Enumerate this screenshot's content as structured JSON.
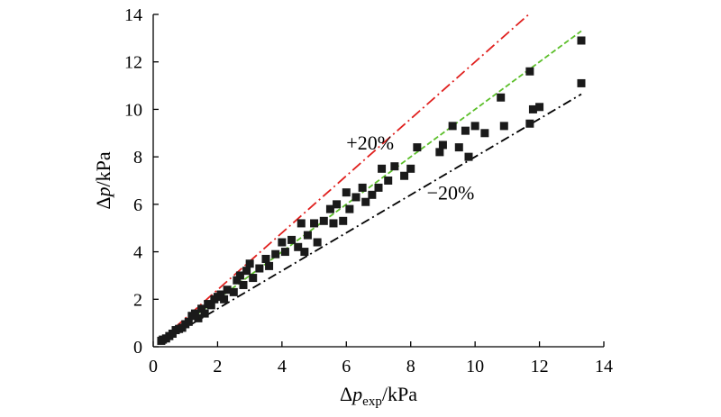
{
  "chart_data": {
    "type": "scatter",
    "title": "",
    "xlabel": {
      "prefix": "Δ",
      "var": "p",
      "sub": "exp",
      "unit": "/kPa"
    },
    "ylabel": {
      "prefix": "Δ",
      "var": "p",
      "unit": "/kPa"
    },
    "xlim": [
      0,
      14
    ],
    "ylim": [
      0,
      14
    ],
    "xticks": [
      "0",
      "2",
      "4",
      "6",
      "8",
      "10",
      "12",
      "14"
    ],
    "yticks": [
      "0",
      "2",
      "4",
      "6",
      "8",
      "10",
      "12",
      "14"
    ],
    "grid": false,
    "legend": "none",
    "lines": [
      {
        "label": "+20%",
        "slope": 1.2,
        "x_range": [
          0.2,
          11.7
        ],
        "color": "#e0201e",
        "dash": "12,4,2,4"
      },
      {
        "label": "",
        "slope": 1.0,
        "x_range": [
          0.2,
          13.3
        ],
        "color": "#5cbf2a",
        "dash": "6,3"
      },
      {
        "label": "−20%",
        "slope": 0.8,
        "x_range": [
          0.2,
          13.3
        ],
        "color": "#000000",
        "dash": "10,4,2,4"
      }
    ],
    "annotations": [
      {
        "text": "+20%",
        "x": 6.0,
        "y": 8.3
      },
      {
        "text": "−20%",
        "x": 8.5,
        "y": 6.2
      }
    ],
    "marker_color": "#1a1a1a",
    "points": [
      [
        0.25,
        0.25
      ],
      [
        0.3,
        0.3
      ],
      [
        0.4,
        0.35
      ],
      [
        0.5,
        0.45
      ],
      [
        0.6,
        0.55
      ],
      [
        0.7,
        0.7
      ],
      [
        0.8,
        0.75
      ],
      [
        0.9,
        0.8
      ],
      [
        1.0,
        0.95
      ],
      [
        1.1,
        1.05
      ],
      [
        1.2,
        1.3
      ],
      [
        1.3,
        1.4
      ],
      [
        1.4,
        1.2
      ],
      [
        1.5,
        1.6
      ],
      [
        1.6,
        1.4
      ],
      [
        1.7,
        1.8
      ],
      [
        1.8,
        1.75
      ],
      [
        1.9,
        2.0
      ],
      [
        2.0,
        2.1
      ],
      [
        2.1,
        2.2
      ],
      [
        2.2,
        2.0
      ],
      [
        2.3,
        2.4
      ],
      [
        2.5,
        2.3
      ],
      [
        2.6,
        2.8
      ],
      [
        2.7,
        3.0
      ],
      [
        2.8,
        2.6
      ],
      [
        2.9,
        3.2
      ],
      [
        3.0,
        3.5
      ],
      [
        3.1,
        2.9
      ],
      [
        3.3,
        3.3
      ],
      [
        3.5,
        3.7
      ],
      [
        3.6,
        3.4
      ],
      [
        3.8,
        3.9
      ],
      [
        4.0,
        4.4
      ],
      [
        4.1,
        4.0
      ],
      [
        4.3,
        4.5
      ],
      [
        4.5,
        4.2
      ],
      [
        4.6,
        5.2
      ],
      [
        4.7,
        4.0
      ],
      [
        4.8,
        4.7
      ],
      [
        5.0,
        5.2
      ],
      [
        5.1,
        4.4
      ],
      [
        5.3,
        5.3
      ],
      [
        5.5,
        5.8
      ],
      [
        5.6,
        5.2
      ],
      [
        5.7,
        6.0
      ],
      [
        5.9,
        5.3
      ],
      [
        6.0,
        6.5
      ],
      [
        6.1,
        5.8
      ],
      [
        6.3,
        6.3
      ],
      [
        6.5,
        6.7
      ],
      [
        6.6,
        6.1
      ],
      [
        6.8,
        6.4
      ],
      [
        7.0,
        6.7
      ],
      [
        7.1,
        7.5
      ],
      [
        7.3,
        7.0
      ],
      [
        7.5,
        7.6
      ],
      [
        7.8,
        7.2
      ],
      [
        8.0,
        7.5
      ],
      [
        8.2,
        8.4
      ],
      [
        8.9,
        8.2
      ],
      [
        9.0,
        8.5
      ],
      [
        9.3,
        9.3
      ],
      [
        9.5,
        8.4
      ],
      [
        9.7,
        9.1
      ],
      [
        9.8,
        8.0
      ],
      [
        10.0,
        9.3
      ],
      [
        10.3,
        9.0
      ],
      [
        10.8,
        10.5
      ],
      [
        10.9,
        9.3
      ],
      [
        11.7,
        11.6
      ],
      [
        11.8,
        10.0
      ],
      [
        12.0,
        10.1
      ],
      [
        11.7,
        9.4
      ],
      [
        13.3,
        12.9
      ],
      [
        13.3,
        11.1
      ]
    ]
  }
}
